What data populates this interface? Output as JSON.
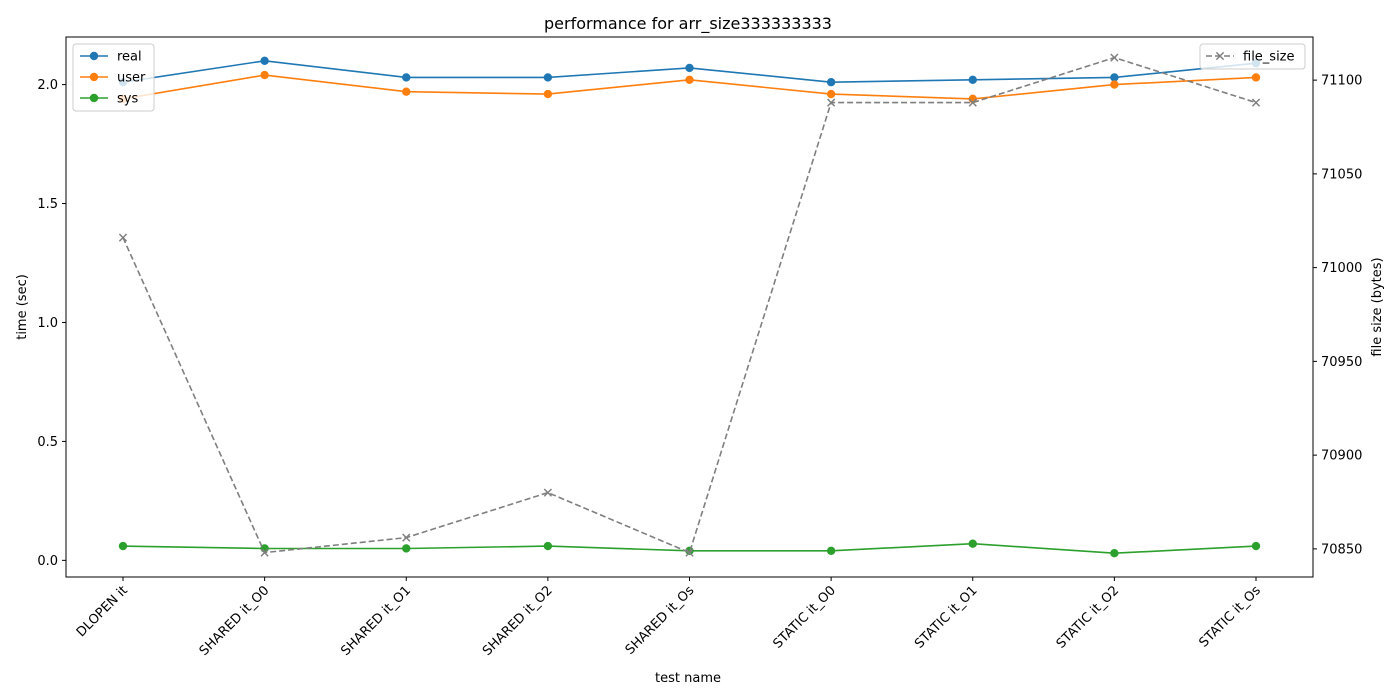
{
  "chart_data": {
    "type": "line",
    "title": "performance for arr_size333333333",
    "xlabel": "test name",
    "ylabel": "time (sec)",
    "y2label": "file size (bytes)",
    "categories": [
      "DLOPEN it",
      "SHARED it_O0",
      "SHARED it_O1",
      "SHARED it_O2",
      "SHARED it_Os",
      "STATIC it_O0",
      "STATIC it_O1",
      "STATIC it_O2",
      "STATIC it_Os"
    ],
    "ylim": [
      -0.07,
      2.2
    ],
    "yticks": [
      0.0,
      0.5,
      1.0,
      1.5,
      2.0
    ],
    "ytick_labels": [
      "0.0",
      "0.5",
      "1.0",
      "1.5",
      "2.0"
    ],
    "y2lim": [
      70835,
      71123
    ],
    "y2ticks": [
      70850,
      70900,
      70950,
      71000,
      71050,
      71100
    ],
    "y2tick_labels": [
      "70850",
      "70900",
      "70950",
      "71000",
      "71050",
      "71100"
    ],
    "grid": false,
    "series": [
      {
        "name": "real",
        "axis": "left",
        "color": "#1f77b4",
        "marker": "circle",
        "values": [
          2.01,
          2.1,
          2.03,
          2.03,
          2.07,
          2.01,
          2.02,
          2.03,
          2.09
        ]
      },
      {
        "name": "user",
        "axis": "left",
        "color": "#ff7f0e",
        "marker": "circle",
        "values": [
          1.94,
          2.04,
          1.97,
          1.96,
          2.02,
          1.96,
          1.94,
          2.0,
          2.03
        ]
      },
      {
        "name": "sys",
        "axis": "left",
        "color": "#2ca02c",
        "marker": "circle",
        "values": [
          0.06,
          0.05,
          0.05,
          0.06,
          0.04,
          0.04,
          0.07,
          0.03,
          0.06
        ]
      },
      {
        "name": "file_size",
        "axis": "right",
        "color": "#7f7f7f",
        "marker": "x",
        "dashed": true,
        "values": [
          71016,
          70848,
          70856,
          70880,
          70848,
          71088,
          71088,
          71112,
          71088
        ]
      }
    ],
    "legend_left_placement": "top-left",
    "legend_right_placement": "top-right"
  }
}
